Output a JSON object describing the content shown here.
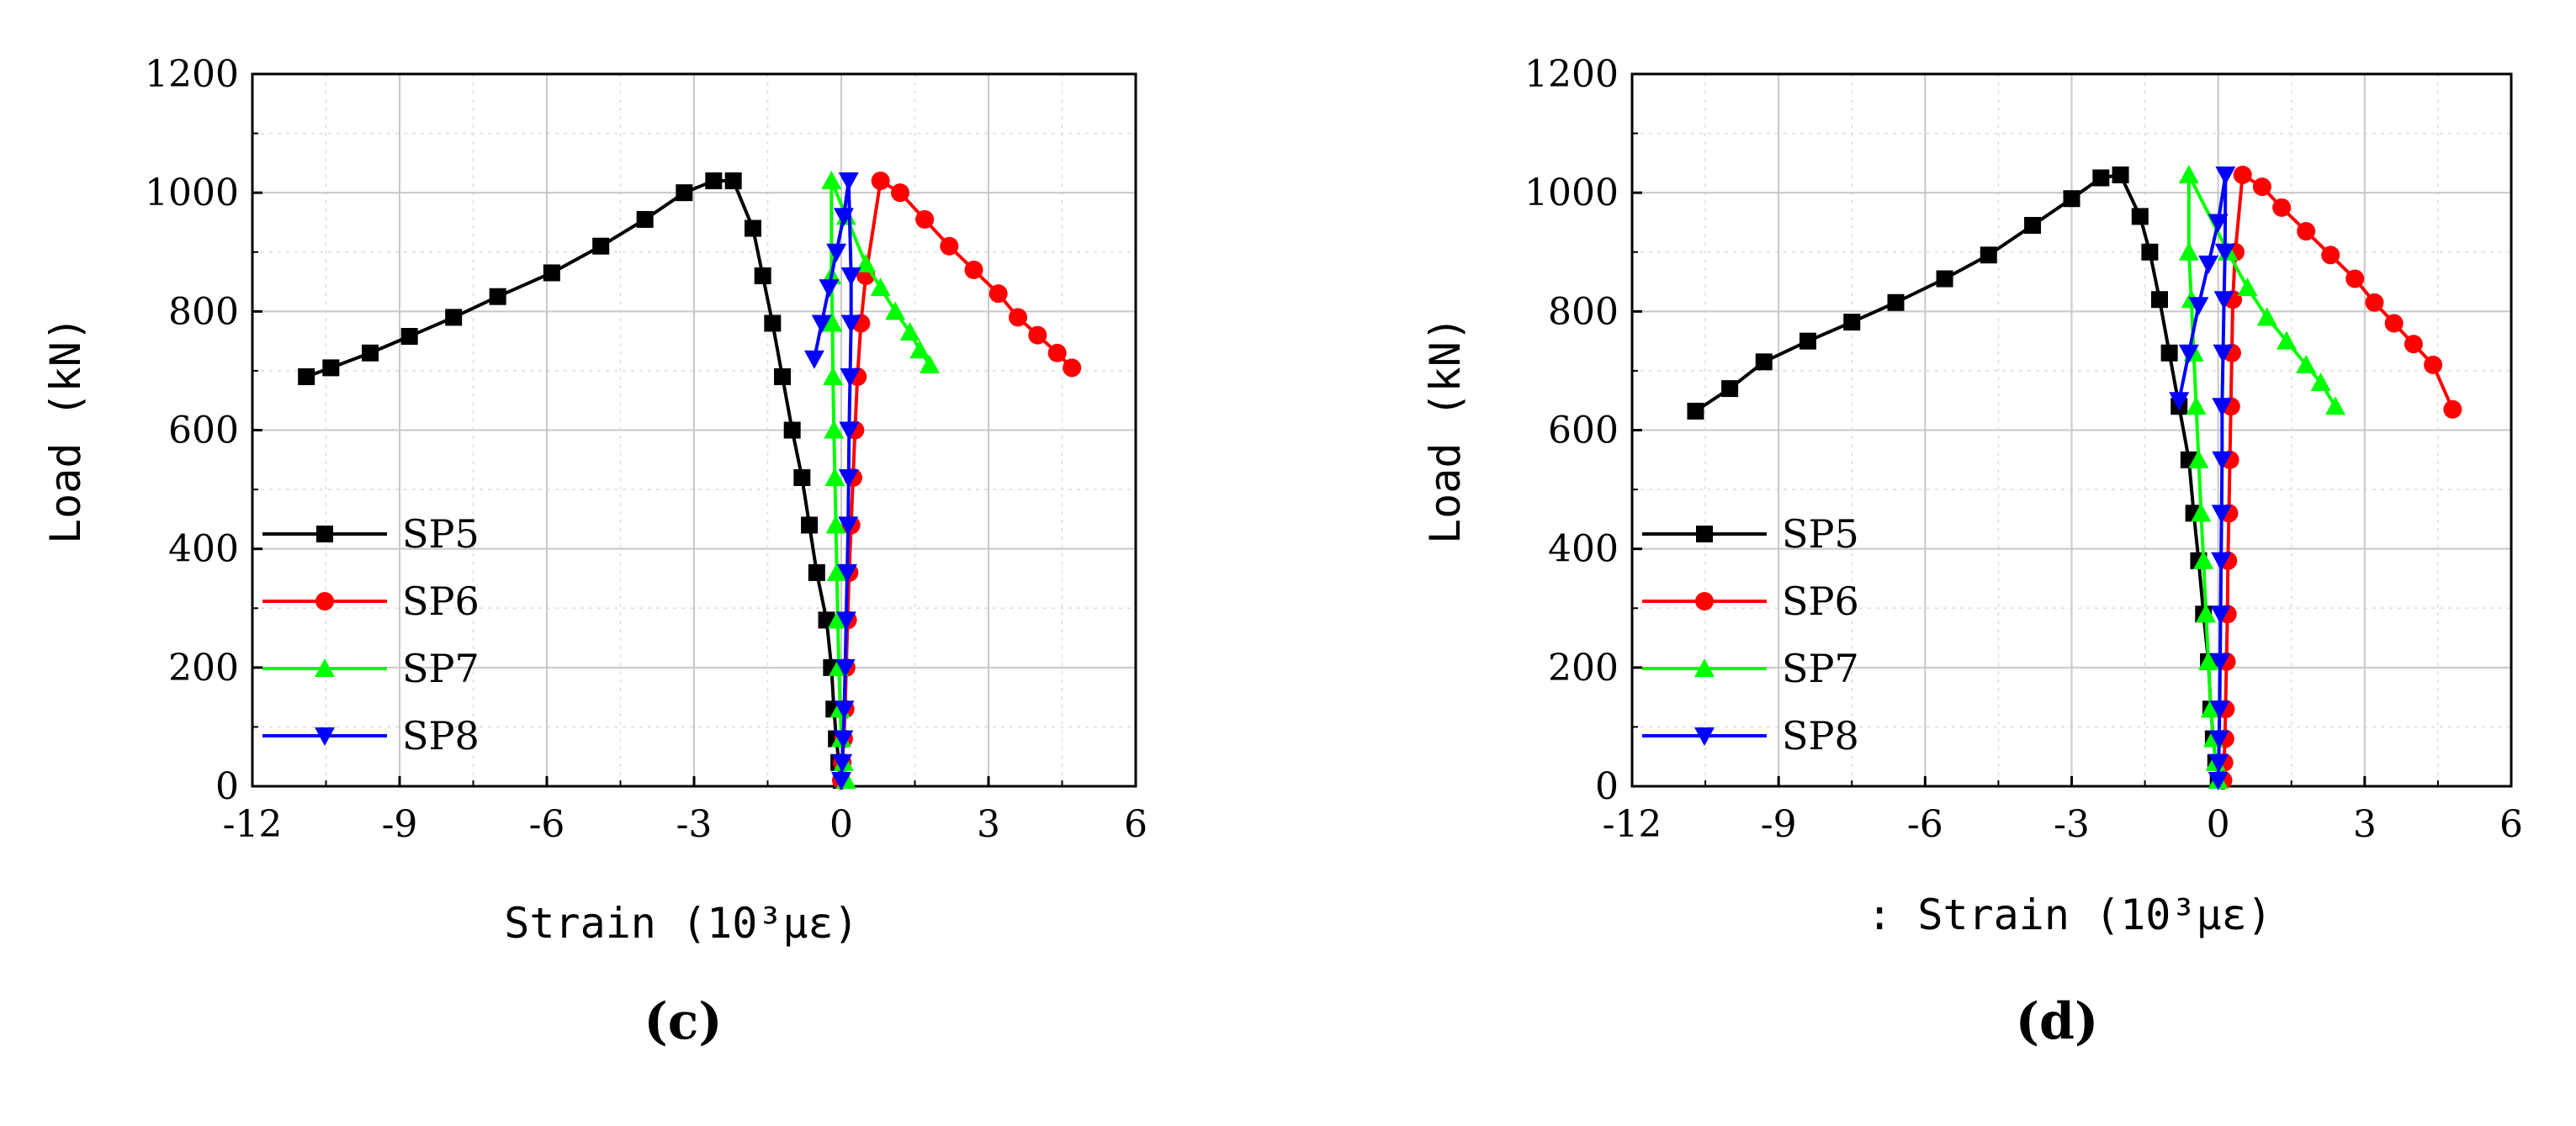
{
  "chart_data": [
    {
      "type": "line",
      "caption": "(c)",
      "xlabel": "Strain (10³με)",
      "ylabel": "Load (kN)",
      "xlim": [
        -12,
        6
      ],
      "ylim": [
        0,
        1200
      ],
      "xticks": [
        "-12",
        "-9",
        "-6",
        "-3",
        "0",
        "3",
        "6"
      ],
      "yticks": [
        "0",
        "200",
        "400",
        "600",
        "800",
        "1000",
        "1200"
      ],
      "grid": true,
      "legend_position": "bottom-left",
      "series": [
        {
          "name": "SP5",
          "color": "#000000",
          "marker": "square",
          "x": [
            0.0,
            -0.05,
            -0.1,
            -0.15,
            -0.2,
            -0.3,
            -0.5,
            -0.65,
            -0.8,
            -1.0,
            -1.2,
            -1.4,
            -1.6,
            -1.8,
            -2.2,
            -2.6,
            -3.2,
            -4.0,
            -4.9,
            -5.9,
            -7.0,
            -7.9,
            -8.8,
            -9.6,
            -10.4,
            -10.9
          ],
          "y": [
            10,
            40,
            80,
            130,
            200,
            280,
            360,
            440,
            520,
            600,
            690,
            780,
            860,
            940,
            1020,
            1020,
            1000,
            955,
            910,
            865,
            825,
            790,
            758,
            730,
            705,
            690
          ]
        },
        {
          "name": "SP6",
          "color": "#ff0000",
          "marker": "circle",
          "x": [
            0.0,
            0.02,
            0.05,
            0.08,
            0.1,
            0.13,
            0.16,
            0.2,
            0.24,
            0.28,
            0.33,
            0.4,
            0.5,
            0.8,
            1.2,
            1.7,
            2.2,
            2.7,
            3.2,
            3.6,
            4.0,
            4.4,
            4.7
          ],
          "y": [
            10,
            40,
            80,
            130,
            200,
            280,
            360,
            440,
            520,
            600,
            690,
            780,
            860,
            1020,
            1000,
            955,
            910,
            870,
            830,
            790,
            760,
            730,
            705
          ]
        },
        {
          "name": "SP7",
          "color": "#00ff00",
          "marker": "triangle-up",
          "x": [
            0.1,
            0.05,
            0.0,
            -0.02,
            -0.05,
            -0.07,
            -0.09,
            -0.11,
            -0.13,
            -0.15,
            -0.17,
            -0.18,
            -0.2,
            -0.2,
            0.1,
            0.5,
            0.8,
            1.1,
            1.4,
            1.6,
            1.8
          ],
          "y": [
            10,
            40,
            80,
            130,
            200,
            280,
            360,
            440,
            520,
            600,
            690,
            780,
            860,
            1020,
            960,
            880,
            840,
            800,
            765,
            735,
            710
          ]
        },
        {
          "name": "SP8",
          "color": "#0000ff",
          "marker": "triangle-down",
          "x": [
            0.0,
            0.02,
            0.04,
            0.06,
            0.08,
            0.1,
            0.12,
            0.14,
            0.15,
            0.16,
            0.18,
            0.2,
            0.2,
            0.15,
            0.05,
            -0.1,
            -0.25,
            -0.4,
            -0.55
          ],
          "y": [
            10,
            40,
            80,
            130,
            200,
            280,
            360,
            440,
            520,
            600,
            690,
            780,
            860,
            1020,
            960,
            900,
            840,
            780,
            720
          ]
        }
      ]
    },
    {
      "type": "line",
      "caption": "(d)",
      "xlabel": ": Strain (10³με)",
      "ylabel": "Load (kN)",
      "xlim": [
        -12,
        6
      ],
      "ylim": [
        0,
        1200
      ],
      "xticks": [
        "-12",
        "-9",
        "-6",
        "-3",
        "0",
        "3",
        "6"
      ],
      "yticks": [
        "0",
        "200",
        "400",
        "600",
        "800",
        "1000",
        "1200"
      ],
      "grid": true,
      "legend_position": "bottom-left",
      "series": [
        {
          "name": "SP5",
          "color": "#000000",
          "marker": "square",
          "x": [
            0.0,
            -0.05,
            -0.1,
            -0.15,
            -0.2,
            -0.3,
            -0.4,
            -0.5,
            -0.6,
            -0.8,
            -1.0,
            -1.2,
            -1.4,
            -1.6,
            -2.0,
            -2.4,
            -3.0,
            -3.8,
            -4.7,
            -5.6,
            -6.6,
            -7.5,
            -8.4,
            -9.3,
            -10.0,
            -10.7
          ],
          "y": [
            10,
            40,
            80,
            130,
            210,
            290,
            380,
            460,
            550,
            640,
            730,
            820,
            900,
            960,
            1030,
            1025,
            990,
            945,
            895,
            855,
            815,
            782,
            750,
            715,
            670,
            632
          ]
        },
        {
          "name": "SP6",
          "color": "#ff0000",
          "marker": "circle",
          "x": [
            0.1,
            0.12,
            0.14,
            0.15,
            0.17,
            0.19,
            0.2,
            0.22,
            0.24,
            0.26,
            0.28,
            0.3,
            0.35,
            0.5,
            0.9,
            1.3,
            1.8,
            2.3,
            2.8,
            3.2,
            3.6,
            4.0,
            4.4,
            4.8
          ],
          "y": [
            10,
            40,
            80,
            130,
            210,
            290,
            380,
            460,
            550,
            640,
            730,
            820,
            900,
            1030,
            1010,
            975,
            935,
            895,
            855,
            815,
            780,
            745,
            710,
            635
          ]
        },
        {
          "name": "SP7",
          "color": "#00ff00",
          "marker": "triangle-up",
          "x": [
            0.0,
            -0.05,
            -0.1,
            -0.15,
            -0.2,
            -0.25,
            -0.3,
            -0.35,
            -0.4,
            -0.45,
            -0.5,
            -0.55,
            -0.6,
            -0.6,
            0.2,
            0.6,
            1.0,
            1.4,
            1.8,
            2.1,
            2.4
          ],
          "y": [
            10,
            40,
            80,
            130,
            210,
            290,
            380,
            460,
            550,
            640,
            730,
            820,
            900,
            1030,
            900,
            840,
            790,
            750,
            710,
            680,
            640
          ]
        },
        {
          "name": "SP8",
          "color": "#0000ff",
          "marker": "triangle-down",
          "x": [
            0.0,
            0.01,
            0.02,
            0.03,
            0.04,
            0.05,
            0.06,
            0.07,
            0.08,
            0.08,
            0.1,
            0.12,
            0.14,
            0.15,
            0.0,
            -0.2,
            -0.4,
            -0.6,
            -0.8
          ],
          "y": [
            10,
            40,
            80,
            130,
            210,
            290,
            380,
            460,
            550,
            640,
            730,
            820,
            900,
            1030,
            950,
            880,
            810,
            730,
            650
          ]
        }
      ]
    }
  ]
}
